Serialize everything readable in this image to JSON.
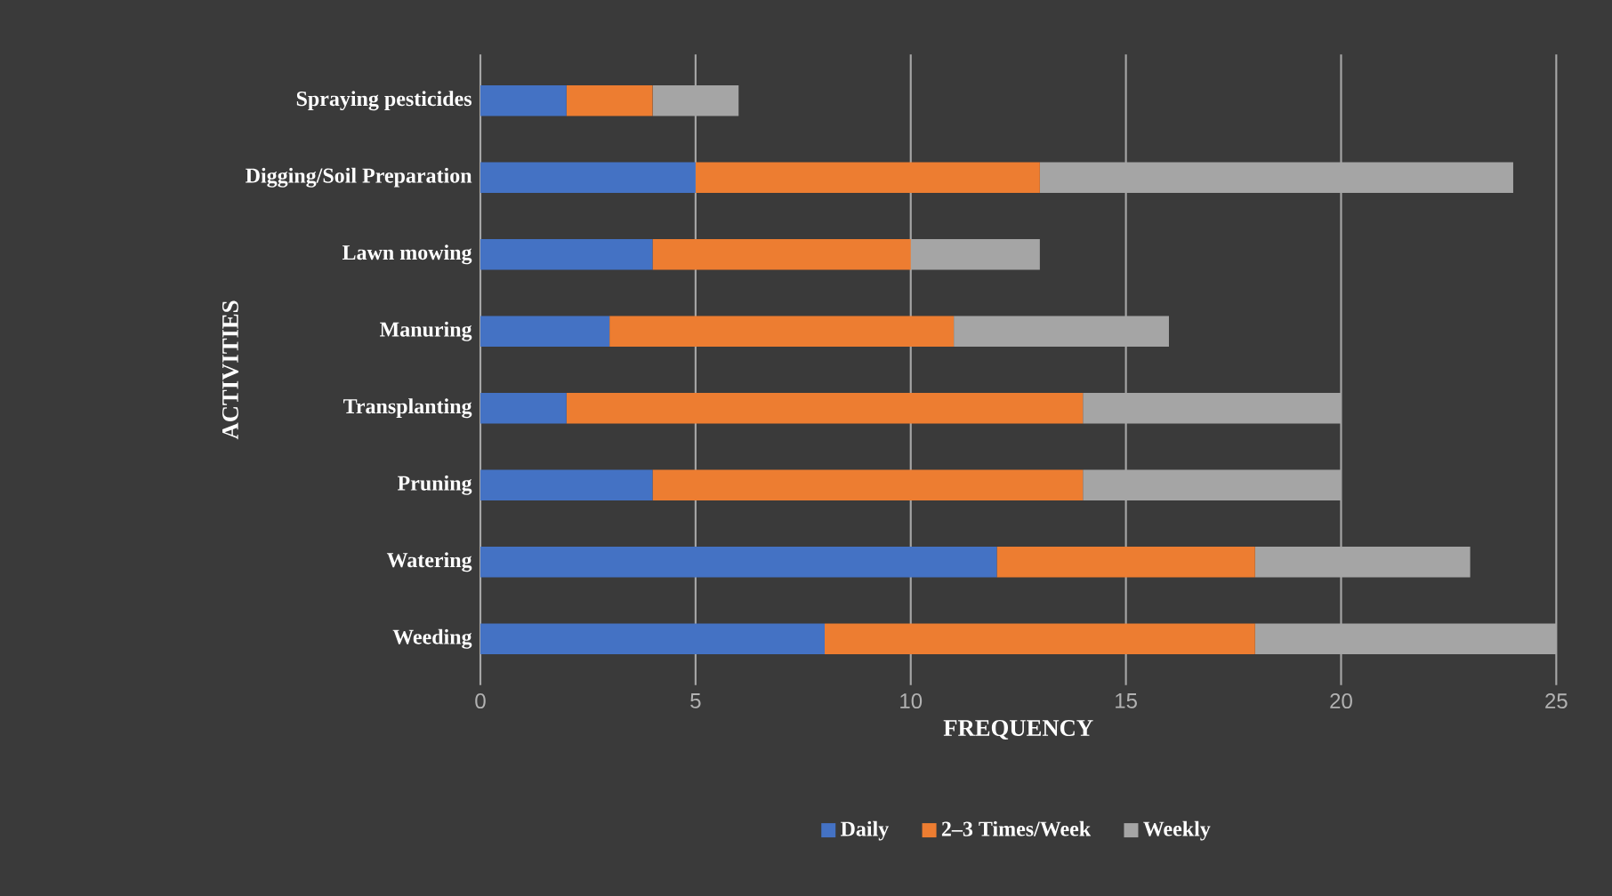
{
  "chart_data": {
    "type": "bar",
    "orientation": "horizontal",
    "stacked": true,
    "xlabel": "FREQUENCY",
    "ylabel": "ACTIVITIES",
    "categories": [
      "Spraying pesticides",
      "Digging/Soil Preparation",
      "Lawn mowing",
      "Manuring",
      "Transplanting",
      "Pruning",
      "Watering",
      "Weeding"
    ],
    "series": [
      {
        "name": "Daily",
        "color": "#4472c4",
        "values": [
          2,
          5,
          4,
          3,
          2,
          4,
          12,
          8
        ]
      },
      {
        "name": "2–3 Times/Week",
        "color": "#ed7d31",
        "values": [
          2,
          8,
          6,
          8,
          12,
          10,
          6,
          10
        ]
      },
      {
        "name": "Weekly",
        "color": "#a5a5a5",
        "values": [
          2,
          11,
          3,
          5,
          6,
          6,
          5,
          7
        ]
      }
    ],
    "xlim": [
      0,
      25
    ],
    "xticks": [
      0,
      5,
      10,
      15,
      20,
      25
    ],
    "grid": "x",
    "legend": "bottom"
  }
}
